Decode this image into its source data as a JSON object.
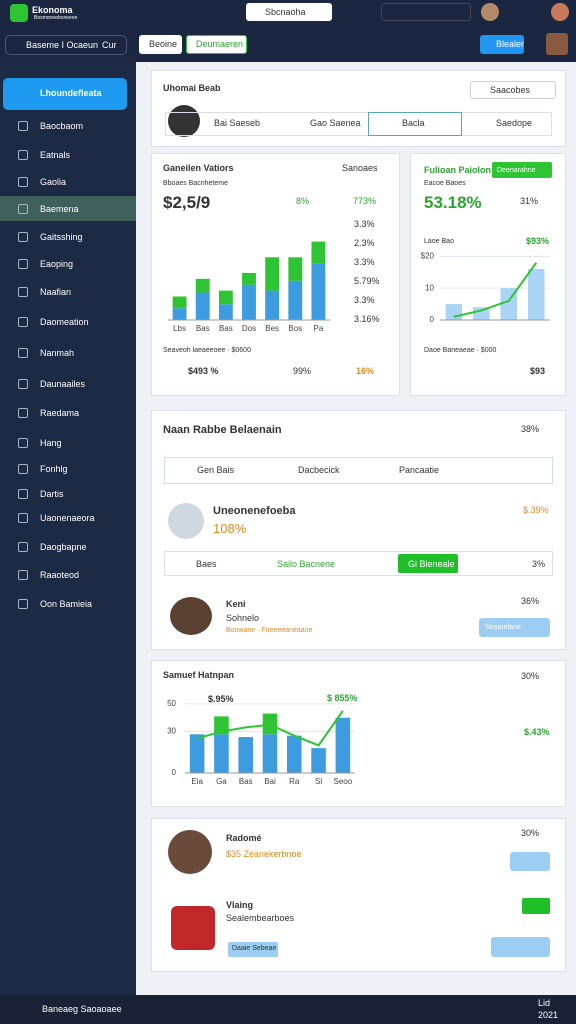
{
  "topbar": {
    "logo": "Ekonoma",
    "logo_sub": "Bosmoneeboneeoe",
    "search": "Sbcnaoha"
  },
  "toolbar": {
    "search": "Baseme I Ocaeun",
    "suffix": "Cur",
    "tab1": "Beoine",
    "tab2": "Deumaeren",
    "button": "Blealer"
  },
  "sidebar": {
    "active": "Lhoundefleata",
    "items": [
      "Baocbaom",
      "Eatnals",
      "Gaolia",
      "Baemena",
      "Gaitsshing",
      "Eaoping",
      "Naafian",
      "Daomeation",
      "Nanmah",
      "Daunaailes",
      "Raedama",
      "Hang",
      "Fonhlg",
      "Dartis",
      "Uaonenaeora",
      "Daogbapne",
      "Raaoteod",
      "Oon Bamieia"
    ]
  },
  "profile_card": {
    "title": "Uhomai Beab",
    "search": "Saacobes",
    "name": "Bai Saeseb",
    "tabs": [
      "Gao Saenea",
      "Bacla",
      "Saedope"
    ]
  },
  "sales_card": {
    "title": "Ganeilen Vatiors",
    "subtitle": "Bboaes Bacnheteme",
    "search": "Sanoaes",
    "total": "$2,5/9",
    "stat1": "8%",
    "stat2": "773%",
    "list": [
      "3.3%",
      "2.3%",
      "3.3%",
      "5.79%",
      "3.3%",
      "3.16%"
    ],
    "footer": "Seaveoh laeaeeoee · $0600",
    "kpi1": "$493 %",
    "kpi2": "99%",
    "kpi3": "16%"
  },
  "growth_card": {
    "title": "Fulioan Paiolon",
    "button": "Deenarahne",
    "subtitle": "Eacoe Baoes",
    "value": "53.18%",
    "stat": "31%",
    "label": "Laoe Bao",
    "peak": "$93%",
    "footer": "Daoe Baneaeae · $000",
    "kpi1": "$93"
  },
  "team_card": {
    "title": "Naan Rabbe Belaenain",
    "pct": "38%",
    "tabs": [
      "Gen Bais",
      "Dacbecick",
      "Pancaatie"
    ],
    "item_name": "Uneonenefoeba",
    "item_value": "108%",
    "item_change": "$.39%",
    "row_a": "Baes",
    "row_b": "Sailo Bacnene",
    "row_button": "Gi Bieneale",
    "row_pct": "3%",
    "person_name": "Keni",
    "person_role": "Sohnelo",
    "person_meta": "Boowane · Foeeeeaneaane",
    "person_pct": "36%",
    "person_button": "Seaarelane"
  },
  "summary_card": {
    "title": "Samuef Hatnpan",
    "pct": "30%",
    "label1": "$.95%",
    "label2": "$ 855%",
    "side": "$.43%"
  },
  "list_card": {
    "pct": "30%",
    "name1": "Radomé",
    "meta1": "$35 Zeanekerbnoe",
    "name2": "Vlaing",
    "meta2": "Sealembearboes",
    "tag2": "Daaie Sebeae"
  },
  "taskbar": {
    "search": "Baneaeg Saoaoaee",
    "time": "Lid",
    "date": "2021"
  },
  "chart_data": [
    {
      "type": "bar",
      "categories": [
        "Lbs",
        "Bas",
        "Bas",
        "Dos",
        "Bes",
        "Bos",
        "Pa"
      ],
      "ylim": [
        0,
        100
      ],
      "series": [
        {
          "color": "#3d9be0",
          "values": [
            12,
            28,
            16,
            36,
            30,
            40,
            58
          ]
        },
        {
          "color": "#2ec433",
          "values": [
            12,
            14,
            14,
            12,
            34,
            24,
            22
          ]
        }
      ]
    },
    {
      "type": "bar",
      "ylim": [
        0,
        22
      ],
      "yticks": [
        0,
        10,
        {
          "value": 20,
          "label": "$20"
        }
      ],
      "grid": true,
      "series": [
        {
          "color": "#a8d4f5",
          "values": [
            5,
            4,
            10,
            16
          ]
        },
        {
          "type": "line",
          "color": "#2ec433",
          "values": [
            1,
            3,
            6,
            18
          ]
        }
      ]
    },
    {
      "type": "bar",
      "categories": [
        "Eia",
        "Ga",
        "Bas",
        "Bai",
        "Ra",
        "Sl",
        "Seoo"
      ],
      "ylim": [
        0,
        55
      ],
      "yticks": [
        0,
        30,
        50
      ],
      "grid": true,
      "series": [
        {
          "color": "#3d9be0",
          "values": [
            28,
            28,
            26,
            28,
            27,
            18,
            40
          ]
        },
        {
          "color": "#2ec433",
          "values": [
            0,
            13,
            0,
            15,
            0,
            0,
            0
          ]
        },
        {
          "type": "line",
          "color": "#2ec433",
          "values": [
            25,
            30,
            33,
            35,
            27,
            20,
            45
          ]
        }
      ]
    }
  ]
}
